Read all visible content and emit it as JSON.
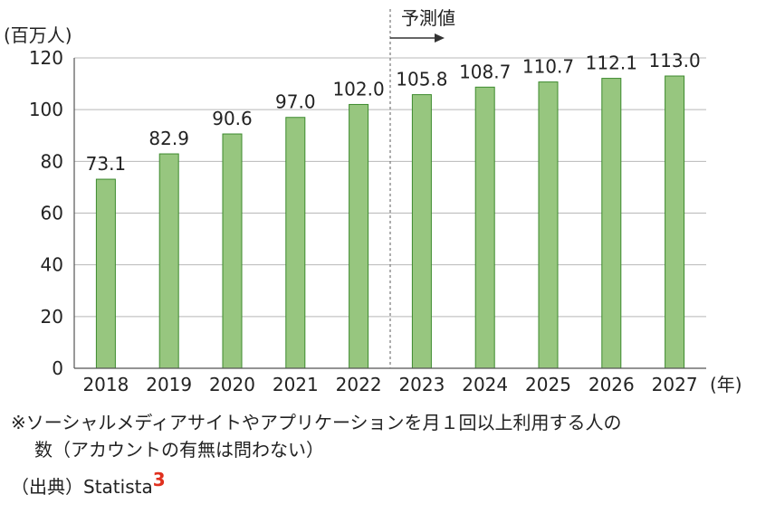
{
  "chart_data": {
    "type": "bar",
    "categories": [
      "2018",
      "2019",
      "2020",
      "2021",
      "2022",
      "2023",
      "2024",
      "2025",
      "2026",
      "2027"
    ],
    "values": [
      73.1,
      82.9,
      90.6,
      97.0,
      102.0,
      105.8,
      108.7,
      110.7,
      112.1,
      113.0
    ],
    "value_labels": [
      "73.1",
      "82.9",
      "90.6",
      "97.0",
      "102.0",
      "105.8",
      "108.7",
      "110.7",
      "112.1",
      "113.0"
    ],
    "ylabel": "(百万人)",
    "xunit": "(年)",
    "ylim": [
      0,
      120
    ],
    "yticks": [
      "0",
      "20",
      "40",
      "60",
      "80",
      "100",
      "120"
    ],
    "forecast_label": "予測値",
    "forecast_start": "2023",
    "grid": true,
    "bar_color": "#97c67f",
    "bar_border": "#3d8a2e"
  },
  "note": {
    "line1": "※ソーシャルメディアサイトやアプリケーションを月１回以上利用する人の",
    "line2": "数（アカウントの有無は問わない）"
  },
  "source": {
    "label": "（出典）Statista",
    "ref": "3"
  }
}
